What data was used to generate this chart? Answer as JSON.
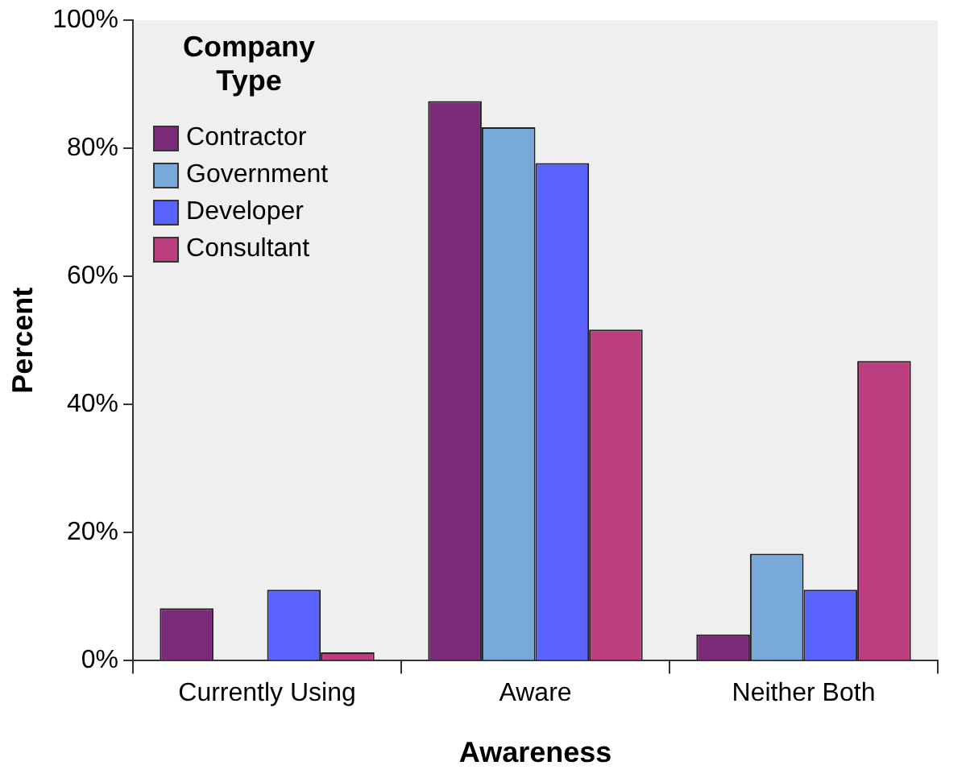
{
  "chart_data": {
    "type": "bar",
    "xlabel": "Awareness",
    "ylabel": "Percent",
    "legend_title": "Company Type",
    "categories": [
      "Currently Using",
      "Aware",
      "Neither Both"
    ],
    "series": [
      {
        "name": "Contractor",
        "color": "#7b2a7a",
        "values": [
          8.2,
          87.4,
          4.1
        ]
      },
      {
        "name": "Government",
        "color": "#79a9d8",
        "values": [
          0,
          83.3,
          16.7
        ]
      },
      {
        "name": "Developer",
        "color": "#5b63fe",
        "values": [
          11.1,
          77.7,
          11.1
        ]
      },
      {
        "name": "Consultant",
        "color": "#bb3e7e",
        "values": [
          1.3,
          51.7,
          46.8
        ]
      }
    ],
    "ylim": [
      0,
      100
    ],
    "yticks": [
      {
        "value": 0,
        "label": "0%"
      },
      {
        "value": 20,
        "label": "20%"
      },
      {
        "value": 40,
        "label": "40%"
      },
      {
        "value": 60,
        "label": "60%"
      },
      {
        "value": 80,
        "label": "80%"
      },
      {
        "value": 100,
        "label": "100%"
      }
    ],
    "grid": false,
    "legend": "top left"
  }
}
